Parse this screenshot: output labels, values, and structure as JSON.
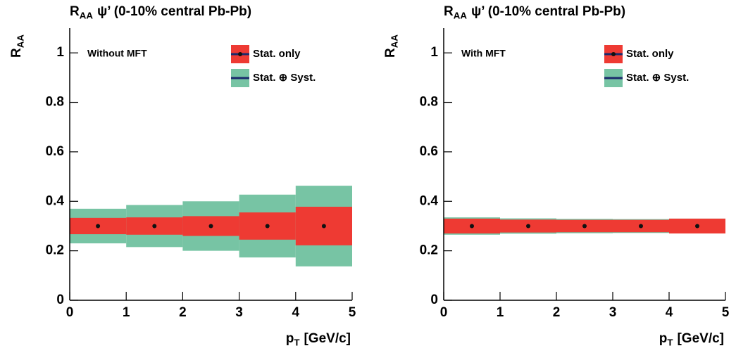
{
  "chart_data": [
    {
      "type": "errorbox",
      "title": {
        "main": "R",
        "sub": "AA",
        "rest": "ψ’  (0-10% central Pb-Pb)"
      },
      "y_label": {
        "main": "R",
        "sub": "AA"
      },
      "x_label": {
        "main": "p",
        "sub": "T",
        "rest": "[GeV/c]"
      },
      "annotation": "Without MFT",
      "bins": [
        0,
        1,
        2,
        3,
        4,
        5
      ],
      "x": [
        0.5,
        1.5,
        2.5,
        3.5,
        4.5
      ],
      "values": [
        0.3,
        0.3,
        0.3,
        0.3,
        0.3
      ],
      "point_color": "#111111",
      "line_color": "#1a2a6c",
      "series": [
        {
          "name": "Stat. ⊕ Syst.",
          "color": "#77c4a4",
          "errors": [
            0.07,
            0.085,
            0.1,
            0.127,
            0.163
          ]
        },
        {
          "name": "Stat. only",
          "color": "#ee3a33",
          "errors": [
            0.033,
            0.035,
            0.04,
            0.055,
            0.078
          ]
        }
      ],
      "legend": "top-right",
      "xlim": [
        0,
        5
      ],
      "xticks": [
        0,
        1,
        2,
        3,
        4,
        5
      ],
      "ylim": [
        0,
        1.1
      ],
      "yticks": [
        0,
        0.2,
        0.4,
        0.6,
        0.8,
        1
      ]
    },
    {
      "type": "errorbox",
      "title": {
        "main": "R",
        "sub": "AA",
        "rest": "ψ’  (0-10% central Pb-Pb)"
      },
      "y_label": {
        "main": "R",
        "sub": "AA"
      },
      "x_label": {
        "main": "p",
        "sub": "T",
        "rest": "[GeV/c]"
      },
      "annotation": "With MFT",
      "bins": [
        0,
        1,
        2,
        3,
        4,
        5
      ],
      "x": [
        0.5,
        1.5,
        2.5,
        3.5,
        4.5
      ],
      "values": [
        0.3,
        0.3,
        0.3,
        0.3,
        0.3
      ],
      "point_color": "#111111",
      "line_color": "#1a2a6c",
      "series": [
        {
          "name": "Stat. ⊕ Syst.",
          "color": "#77c4a4",
          "errors": [
            0.035,
            0.031,
            0.029,
            0.028,
            0.03
          ]
        },
        {
          "name": "Stat. only",
          "color": "#ee3a33",
          "errors": [
            0.03,
            0.026,
            0.025,
            0.025,
            0.03
          ]
        }
      ],
      "legend": "top-right",
      "xlim": [
        0,
        5
      ],
      "xticks": [
        0,
        1,
        2,
        3,
        4,
        5
      ],
      "ylim": [
        0,
        1.1
      ],
      "yticks": [
        0,
        0.2,
        0.4,
        0.6,
        0.8,
        1
      ]
    }
  ]
}
